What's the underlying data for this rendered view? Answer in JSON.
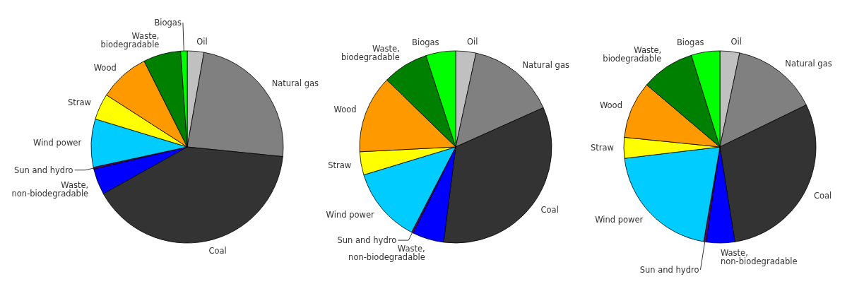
{
  "chart_data": [
    {
      "type": "pie",
      "categories": [
        "Oil",
        "Natural gas",
        "Coal",
        "Waste, non-biodegradable",
        "Sun and hydro",
        "Wind power",
        "Straw",
        "Wood",
        "Waste, biodegradable",
        "Biogas"
      ],
      "values": [
        2.8,
        23.8,
        40.3,
        4.4,
        0.3,
        8.1,
        4.4,
        8.5,
        6.3,
        1.1
      ],
      "colors": [
        "#c0c0c0",
        "#808080",
        "#333333",
        "#0000ff",
        "#660066",
        "#00ccff",
        "#ffff00",
        "#ff9900",
        "#008000",
        "#00ff00"
      ]
    },
    {
      "type": "pie",
      "categories": [
        "Oil",
        "Natural gas",
        "Coal",
        "Waste, non-biodegradable",
        "Sun and hydro",
        "Wind power",
        "Straw",
        "Wood",
        "Waste, biodegradable",
        "Biogas"
      ],
      "values": [
        3.4,
        14.9,
        33.7,
        5.3,
        0.3,
        12.7,
        3.9,
        13.1,
        7.7,
        5.0
      ],
      "colors": [
        "#c0c0c0",
        "#808080",
        "#333333",
        "#0000ff",
        "#660066",
        "#00ccff",
        "#ffff00",
        "#ff9900",
        "#008000",
        "#00ff00"
      ]
    },
    {
      "type": "pie",
      "categories": [
        "Oil",
        "Natural gas",
        "Coal",
        "Waste, non-biodegradable",
        "Sun and hydro",
        "Wind power",
        "Straw",
        "Wood",
        "Waste, biodegradable",
        "Biogas"
      ],
      "values": [
        3.3,
        14.5,
        29.7,
        4.8,
        0.4,
        20.4,
        3.5,
        9.6,
        9.0,
        4.8
      ],
      "colors": [
        "#c0c0c0",
        "#808080",
        "#333333",
        "#0000ff",
        "#660066",
        "#00ccff",
        "#ffff00",
        "#ff9900",
        "#008000",
        "#00ff00"
      ]
    }
  ]
}
